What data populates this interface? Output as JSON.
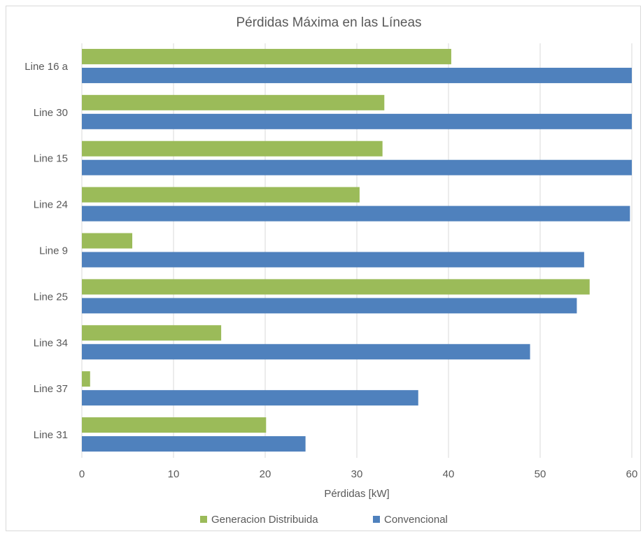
{
  "chart_data": {
    "type": "bar",
    "orientation": "horizontal",
    "title": "Pérdidas Máxima en las Líneas",
    "xlabel": "Pérdidas [kW]",
    "ylabel": "",
    "xlim": [
      0,
      60
    ],
    "xticks": [
      "0",
      "10",
      "20",
      "30",
      "40",
      "50",
      "60"
    ],
    "grid": "vertical",
    "legend_position": "bottom",
    "categories": [
      "Line 16 a",
      "Line 30",
      "Line 15",
      "Line 24",
      "Line 9",
      "Line 25",
      "Line 34",
      "Line 37",
      "Line 31"
    ],
    "series": [
      {
        "name": "Generacion Distribuida",
        "color": "#9bbb59",
        "values": [
          40.3,
          33.0,
          32.8,
          30.3,
          5.5,
          55.4,
          15.2,
          0.9,
          20.1
        ]
      },
      {
        "name": "Convencional",
        "color": "#4f81bd",
        "values": [
          60.0,
          60.0,
          60.0,
          59.8,
          54.8,
          54.0,
          48.9,
          36.7,
          24.4
        ]
      }
    ]
  }
}
